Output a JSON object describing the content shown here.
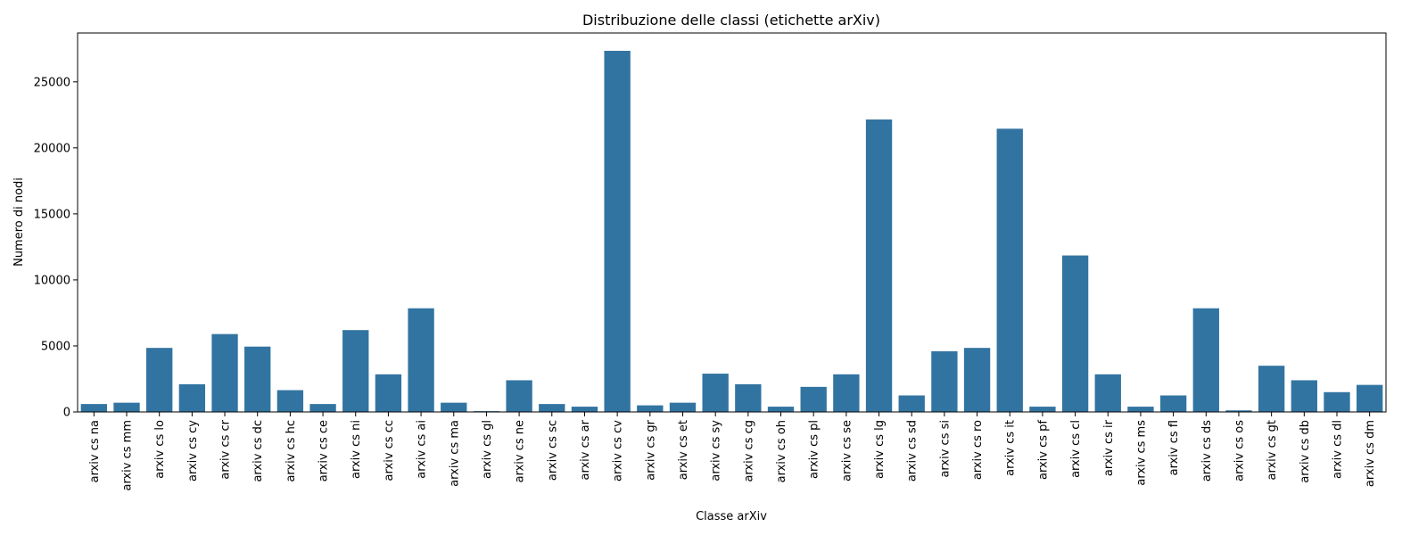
{
  "chart_data": {
    "type": "bar",
    "title": "Distribuzione delle classi (etichette arXiv)",
    "xlabel": "Classe arXiv",
    "ylabel": "Numero di nodi",
    "ylim": [
      0,
      28700
    ],
    "yticks": [
      0,
      5000,
      10000,
      15000,
      20000,
      25000
    ],
    "grid": false,
    "bar_color": "#3274a1",
    "categories": [
      "arxiv cs na",
      "arxiv cs mm",
      "arxiv cs lo",
      "arxiv cs cy",
      "arxiv cs cr",
      "arxiv cs dc",
      "arxiv cs hc",
      "arxiv cs ce",
      "arxiv cs ni",
      "arxiv cs cc",
      "arxiv cs ai",
      "arxiv cs ma",
      "arxiv cs gl",
      "arxiv cs ne",
      "arxiv cs sc",
      "arxiv cs ar",
      "arxiv cs cv",
      "arxiv cs gr",
      "arxiv cs et",
      "arxiv cs sy",
      "arxiv cs cg",
      "arxiv cs oh",
      "arxiv cs pl",
      "arxiv cs se",
      "arxiv cs lg",
      "arxiv cs sd",
      "arxiv cs si",
      "arxiv cs ro",
      "arxiv cs it",
      "arxiv cs pf",
      "arxiv cs cl",
      "arxiv cs ir",
      "arxiv cs ms",
      "arxiv cs fl",
      "arxiv cs ds",
      "arxiv cs os",
      "arxiv cs gt",
      "arxiv cs db",
      "arxiv cs dl",
      "arxiv cs dm"
    ],
    "values": [
      600,
      700,
      4850,
      2100,
      5900,
      4950,
      1650,
      600,
      6200,
      2850,
      7850,
      700,
      60,
      2400,
      600,
      400,
      27350,
      500,
      700,
      2900,
      2100,
      400,
      1900,
      2850,
      22150,
      1250,
      4600,
      4850,
      21450,
      400,
      11850,
      2850,
      400,
      1250,
      7850,
      120,
      3500,
      2400,
      1500,
      2050
    ]
  }
}
